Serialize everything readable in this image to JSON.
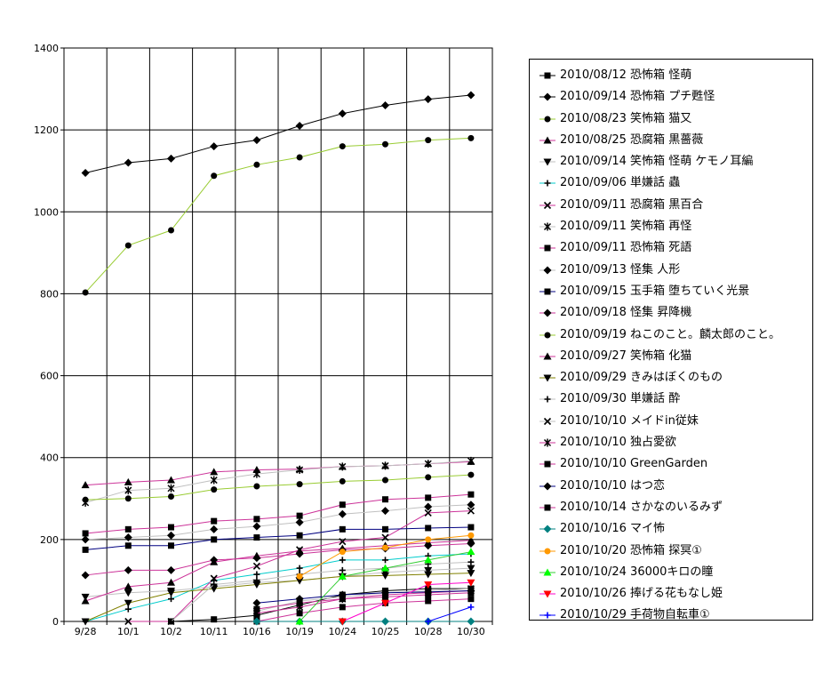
{
  "chart_data": {
    "type": "line",
    "categories": [
      "9/28",
      "10/1",
      "10/2",
      "10/11",
      "10/16",
      "10/19",
      "10/24",
      "10/25",
      "10/28",
      "10/30"
    ],
    "ylim": [
      0,
      1400
    ],
    "yticks": [
      0,
      200,
      400,
      600,
      800,
      1000,
      1200,
      1400
    ],
    "grid": true,
    "legend_position": "right",
    "series": [
      {
        "name": "2010/08/12 恐怖箱 怪萌",
        "color": "#000000",
        "marker": "square",
        "line": "#000000",
        "values": [
          null,
          null,
          0,
          5,
          15,
          40,
          65,
          75,
          80,
          80
        ]
      },
      {
        "name": "2010/09/14 恐怖箱 プチ甦怪",
        "color": "#000000",
        "marker": "diamond",
        "line": "#000000",
        "values": [
          1095,
          1120,
          1130,
          1160,
          1175,
          1210,
          1240,
          1260,
          1275,
          1285
        ]
      },
      {
        "name": "2010/08/23 笑怖箱 猫又",
        "color": "#000000",
        "marker": "circle",
        "line": "#99cc33",
        "values": [
          803,
          918,
          955,
          1088,
          1115,
          1133,
          1160,
          1165,
          1175,
          1180
        ]
      },
      {
        "name": "2010/08/25 恐腐箱 黒薔薇",
        "color": "#000000",
        "marker": "triangle",
        "line": "#cc3399",
        "values": [
          333,
          340,
          345,
          365,
          370,
          372,
          378,
          380,
          385,
          390
        ]
      },
      {
        "name": "2010/09/14 笑怖箱 怪萌 ケモノ耳編",
        "color": "#000000",
        "marker": "triangle-down",
        "line": "#c0c0c0",
        "values": [
          60,
          70,
          75,
          85,
          95,
          100,
          110,
          120,
          125,
          130
        ]
      },
      {
        "name": "2010/09/06 単嫌話 蟲",
        "color": "#000000",
        "marker": "plus",
        "line": "#00cccc",
        "values": [
          0,
          30,
          55,
          100,
          115,
          130,
          150,
          150,
          160,
          165
        ]
      },
      {
        "name": "2010/09/11 恐腐箱 黒百合",
        "color": "#000000",
        "marker": "x",
        "line": "#cc3399",
        "values": [
          null,
          0,
          0,
          105,
          135,
          175,
          195,
          205,
          265,
          270
        ]
      },
      {
        "name": "2010/09/11 笑怖箱 再怪",
        "color": "#000000",
        "marker": "star",
        "line": "#c0c0c0",
        "values": [
          290,
          320,
          325,
          345,
          360,
          370,
          378,
          380,
          385,
          392
        ]
      },
      {
        "name": "2010/09/11 恐怖箱 死語",
        "color": "#000000",
        "marker": "square",
        "line": "#cc3399",
        "values": [
          215,
          225,
          230,
          245,
          250,
          258,
          285,
          298,
          302,
          310
        ]
      },
      {
        "name": "2010/09/13 怪集 人形",
        "color": "#000000",
        "marker": "diamond",
        "line": "#c0c0c0",
        "values": [
          200,
          205,
          210,
          225,
          232,
          242,
          262,
          270,
          280,
          285
        ]
      },
      {
        "name": "2010/09/15 玉手箱 堕ちていく光景",
        "color": "#000000",
        "marker": "square",
        "line": "#000080",
        "values": [
          175,
          185,
          185,
          200,
          205,
          210,
          225,
          225,
          228,
          230
        ]
      },
      {
        "name": "2010/09/18 怪集 昇降機",
        "color": "#000000",
        "marker": "diamond",
        "line": "#cc3399",
        "values": [
          113,
          125,
          125,
          150,
          155,
          165,
          175,
          178,
          185,
          190
        ]
      },
      {
        "name": "2010/09/19 ねこのこと。麟太郎のこと。",
        "color": "#000000",
        "marker": "circle",
        "line": "#99cc33",
        "values": [
          297,
          300,
          305,
          322,
          330,
          335,
          342,
          345,
          352,
          358
        ]
      },
      {
        "name": "2010/09/27 笑怖箱 化猫",
        "color": "#000000",
        "marker": "triangle",
        "line": "#cc3399",
        "values": [
          50,
          85,
          95,
          145,
          160,
          172,
          178,
          185,
          192,
          198
        ]
      },
      {
        "name": "2010/09/29 きみはぼくのもの",
        "color": "#000000",
        "marker": "triangle-down",
        "line": "#808000",
        "values": [
          0,
          45,
          70,
          80,
          90,
          100,
          110,
          112,
          115,
          118
        ]
      },
      {
        "name": "2010/09/30 単嫌話 酔",
        "color": "#000000",
        "marker": "plus",
        "line": "#c0c0c0",
        "values": [
          null,
          null,
          0,
          90,
          100,
          115,
          125,
          130,
          140,
          145
        ]
      },
      {
        "name": "2010/10/10 メイドin従妹",
        "color": "#000000",
        "marker": "x",
        "line": "#c0c0c0",
        "values": [
          null,
          null,
          null,
          null,
          25,
          50,
          60,
          70,
          75,
          80
        ]
      },
      {
        "name": "2010/10/10 独占愛欲",
        "color": "#000000",
        "marker": "star",
        "line": "#cc3399",
        "values": [
          null,
          null,
          null,
          null,
          20,
          35,
          55,
          65,
          70,
          75
        ]
      },
      {
        "name": "2010/10/10 GreenGarden",
        "color": "#000000",
        "marker": "square",
        "line": "#cc3399",
        "values": [
          null,
          null,
          null,
          null,
          30,
          45,
          55,
          60,
          65,
          70
        ]
      },
      {
        "name": "2010/10/10 はつ恋",
        "color": "#000000",
        "marker": "diamond",
        "line": "#000080",
        "values": [
          null,
          null,
          null,
          null,
          45,
          55,
          65,
          70,
          72,
          75
        ]
      },
      {
        "name": "2010/10/14 さかなのいるみず",
        "color": "#000000",
        "marker": "square",
        "line": "#cc3399",
        "values": [
          null,
          null,
          null,
          null,
          0,
          20,
          35,
          45,
          50,
          55
        ]
      },
      {
        "name": "2010/10/16 マイ怖",
        "color": "#008080",
        "marker": "diamond",
        "line": "#008080",
        "values": [
          null,
          null,
          null,
          null,
          0,
          0,
          0,
          0,
          0,
          0
        ]
      },
      {
        "name": "2010/10/20 恐怖箱 探冥①",
        "color": "#ff9900",
        "marker": "circle",
        "line": "#ff9900",
        "values": [
          null,
          null,
          null,
          null,
          null,
          110,
          170,
          180,
          200,
          210
        ]
      },
      {
        "name": "2010/10/24 36000キロの瞳",
        "color": "#00ff00",
        "marker": "triangle",
        "line": "#33cc33",
        "values": [
          null,
          null,
          null,
          null,
          null,
          0,
          110,
          130,
          150,
          170
        ]
      },
      {
        "name": "2010/10/26 捧げる花もなし姫",
        "color": "#ff0000",
        "marker": "triangle-down",
        "line": "#ff00cc",
        "values": [
          null,
          null,
          null,
          null,
          null,
          null,
          0,
          45,
          90,
          95
        ]
      },
      {
        "name": "2010/10/29 手荷物自転車①",
        "color": "#0000ff",
        "marker": "plus",
        "line": "#0000ff",
        "values": [
          null,
          null,
          null,
          null,
          null,
          null,
          null,
          null,
          0,
          35
        ]
      }
    ]
  }
}
